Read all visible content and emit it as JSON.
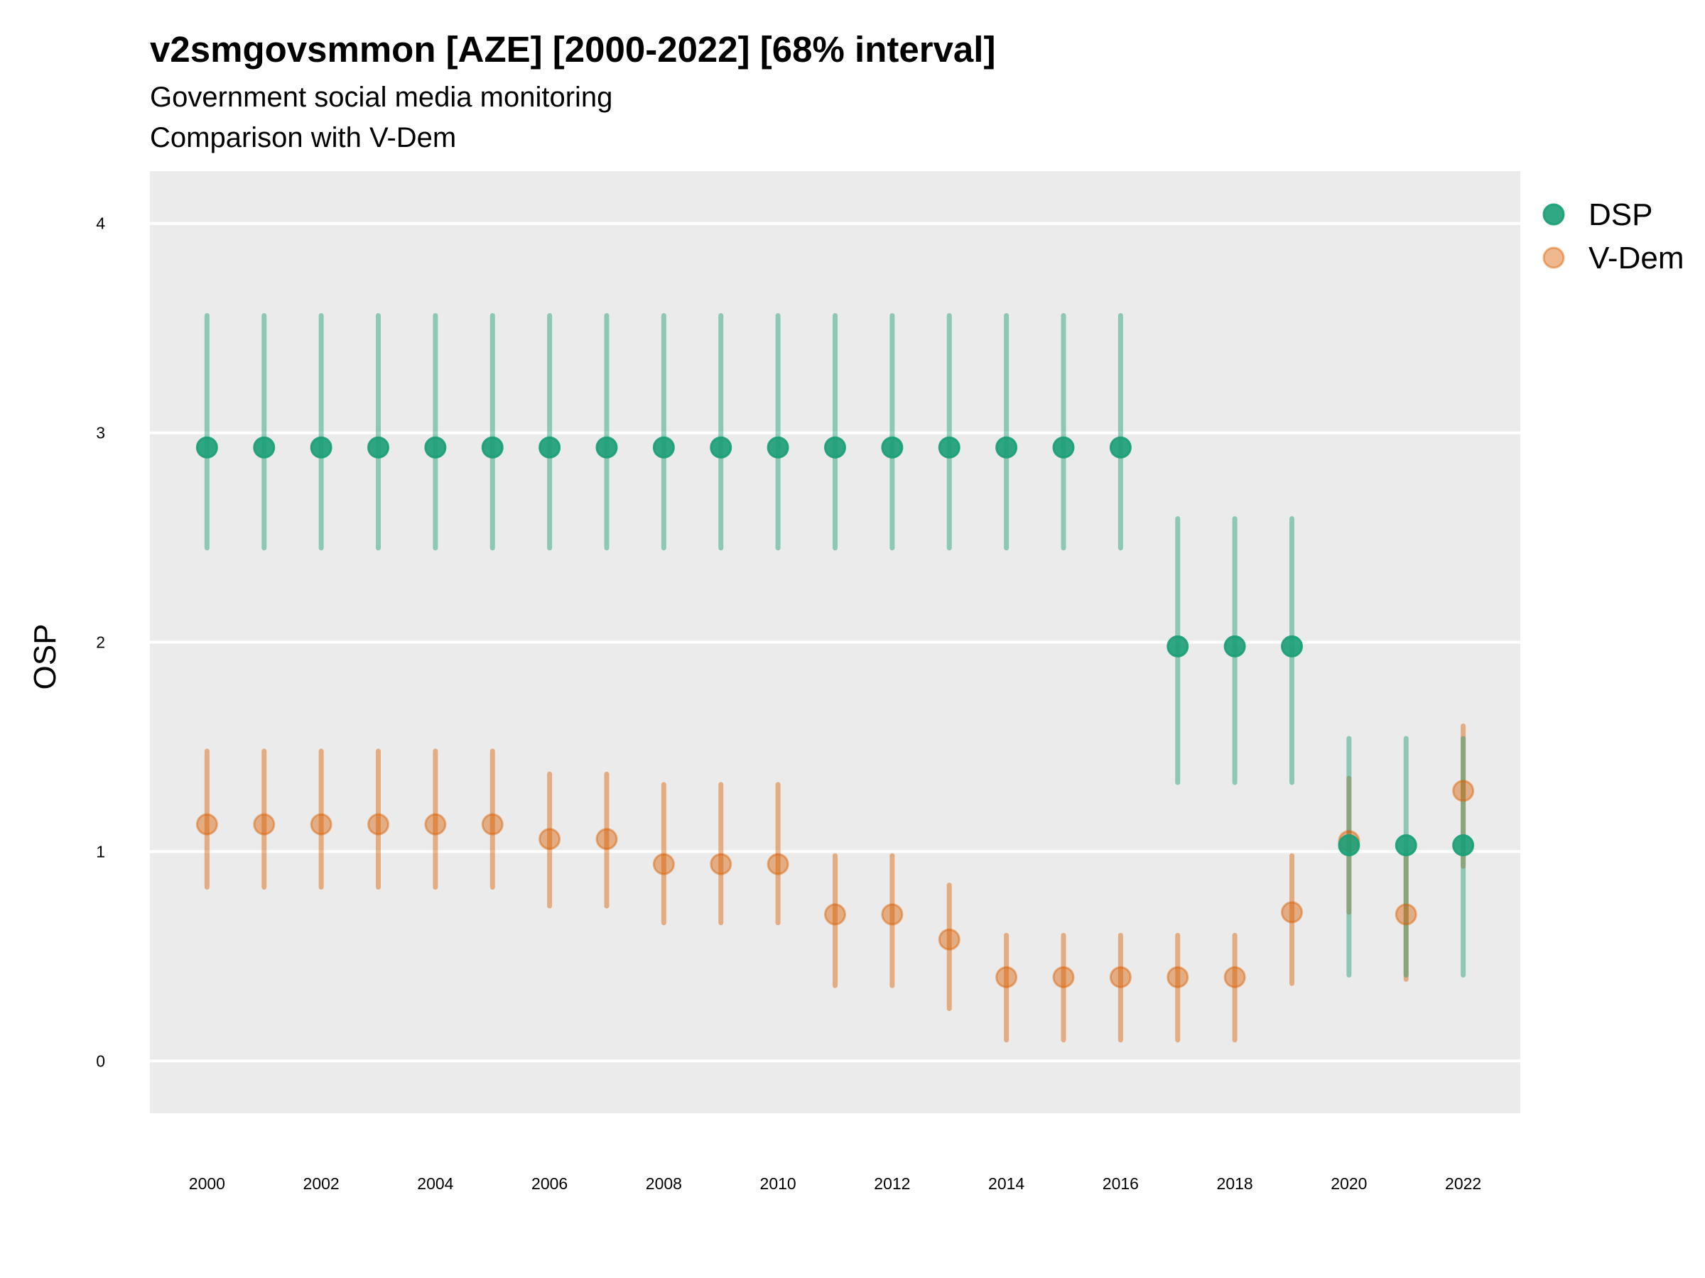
{
  "chart_data": {
    "type": "scatter",
    "title": "v2smgovsmmon [AZE] [2000-2022] [68% interval]",
    "subtitle": "Government social media monitoring",
    "caption": "Comparison with V-Dem",
    "xlabel": "",
    "ylabel": "OSP",
    "xlim": [
      1999,
      2023
    ],
    "ylim": [
      -0.25,
      4.25
    ],
    "x_ticks": [
      2000,
      2002,
      2004,
      2006,
      2008,
      2010,
      2012,
      2014,
      2016,
      2018,
      2020,
      2022
    ],
    "y_ticks": [
      0,
      1,
      2,
      3,
      4
    ],
    "grid": true,
    "legend_position": "right",
    "x": [
      2000,
      2001,
      2002,
      2003,
      2004,
      2005,
      2006,
      2007,
      2008,
      2009,
      2010,
      2011,
      2012,
      2013,
      2014,
      2015,
      2016,
      2017,
      2018,
      2019,
      2020,
      2021,
      2022
    ],
    "series": [
      {
        "name": "DSP",
        "color": "#1b9e77",
        "values": [
          2.93,
          2.93,
          2.93,
          2.93,
          2.93,
          2.93,
          2.93,
          2.93,
          2.93,
          2.93,
          2.93,
          2.93,
          2.93,
          2.93,
          2.93,
          2.93,
          2.93,
          1.98,
          1.98,
          1.98,
          1.03,
          1.03,
          1.03
        ],
        "lower": [
          2.45,
          2.45,
          2.45,
          2.45,
          2.45,
          2.45,
          2.45,
          2.45,
          2.45,
          2.45,
          2.45,
          2.45,
          2.45,
          2.45,
          2.45,
          2.45,
          2.45,
          1.33,
          1.33,
          1.33,
          0.41,
          0.41,
          0.41
        ],
        "upper": [
          3.56,
          3.56,
          3.56,
          3.56,
          3.56,
          3.56,
          3.56,
          3.56,
          3.56,
          3.56,
          3.56,
          3.56,
          3.56,
          3.56,
          3.56,
          3.56,
          3.56,
          2.59,
          2.59,
          2.59,
          1.54,
          1.54,
          1.54
        ]
      },
      {
        "name": "V-Dem",
        "color": "#d95f02",
        "values": [
          1.13,
          1.13,
          1.13,
          1.13,
          1.13,
          1.13,
          1.06,
          1.06,
          0.94,
          0.94,
          0.94,
          0.7,
          0.7,
          0.58,
          0.4,
          0.4,
          0.4,
          0.4,
          0.4,
          0.71,
          1.05,
          0.7,
          1.29
        ],
        "lower": [
          0.83,
          0.83,
          0.83,
          0.83,
          0.83,
          0.83,
          0.74,
          0.74,
          0.66,
          0.66,
          0.66,
          0.36,
          0.36,
          0.25,
          0.1,
          0.1,
          0.1,
          0.1,
          0.1,
          0.37,
          0.71,
          0.39,
          0.93
        ],
        "upper": [
          1.48,
          1.48,
          1.48,
          1.48,
          1.48,
          1.48,
          1.37,
          1.37,
          1.32,
          1.32,
          1.32,
          0.98,
          0.98,
          0.84,
          0.6,
          0.6,
          0.6,
          0.6,
          0.6,
          0.98,
          1.35,
          1.0,
          1.6
        ]
      }
    ]
  }
}
